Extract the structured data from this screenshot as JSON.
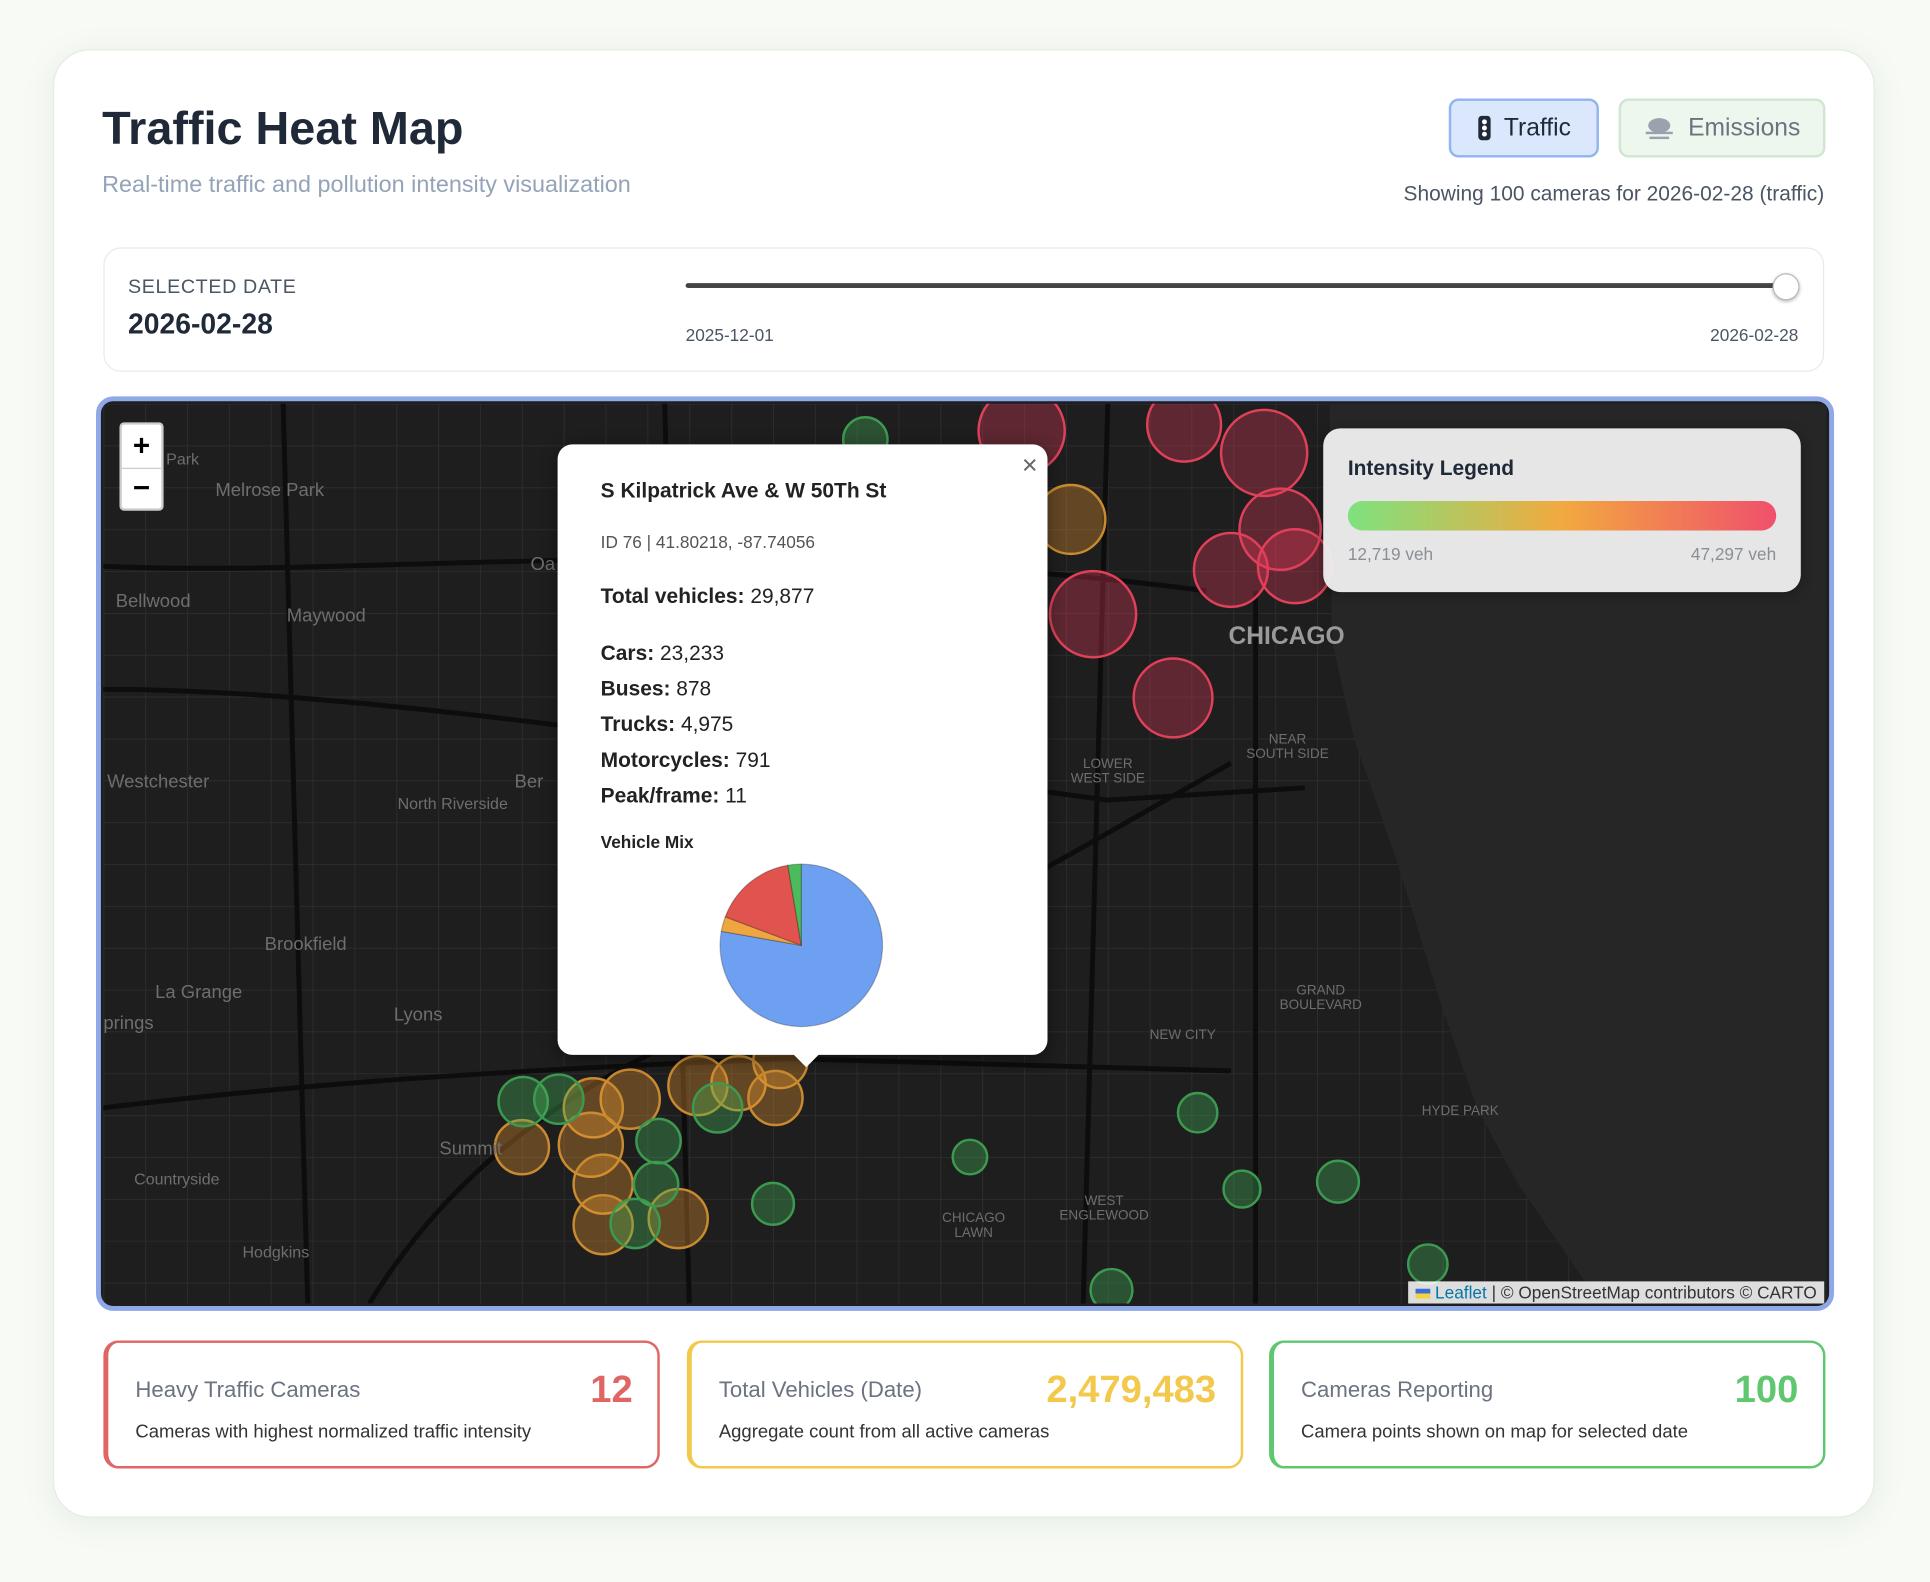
{
  "header": {
    "title": "Traffic Heat Map",
    "subtitle": "Real-time traffic and pollution intensity visualization",
    "buttons": [
      "Traffic",
      "Emissions"
    ],
    "status": "Showing 100 cameras for 2026-02-28 (traffic)"
  },
  "date_panel": {
    "label": "SELECTED DATE",
    "value": "2026-02-28",
    "range_start": "2025-12-01",
    "range_end": "2026-02-28"
  },
  "map": {
    "zoom_in": "+",
    "zoom_out": "−",
    "labels": [
      [
        "Park"
      ],
      [
        "Melrose Park"
      ],
      [
        "Bellwood"
      ],
      [
        "Maywood"
      ],
      [
        "Oa"
      ],
      [
        "Westchester"
      ],
      [
        "Ber"
      ],
      [
        "North Riverside"
      ],
      [
        "Brookfield"
      ],
      [
        "La Grange"
      ],
      [
        "prings"
      ],
      [
        "Lyons"
      ],
      [
        "Summit"
      ],
      [
        "Countryside"
      ],
      [
        "Hodgkins"
      ],
      [
        "CHICAGO"
      ],
      [
        "LOWER",
        "WEST SIDE"
      ],
      [
        "NEAR",
        "SOUTH SIDE"
      ],
      [
        "NEW CITY"
      ],
      [
        "GRAND",
        "BOULEVARD"
      ],
      [
        "HYDE PARK"
      ],
      [
        "WEST",
        "ENGLEWOOD"
      ],
      [
        "CHICAGO",
        "LAWN"
      ]
    ],
    "attribution": {
      "link": "Leaflet",
      "text": "| © OpenStreetMap contributors © CARTO"
    }
  },
  "popup": {
    "close": "×",
    "title": "S Kilpatrick Ave & W 50Th St",
    "meta": "ID 76 | 41.80218, -87.74056",
    "total_label": "Total vehicles:",
    "total_value": "29,877",
    "breakdown": {
      "labels": [
        "Cars:",
        "Buses:",
        "Trucks:",
        "Motorcycles:"
      ],
      "values": [
        23233,
        878,
        4975,
        791
      ],
      "value_labels": [
        "23,233",
        "878",
        "4,975",
        "791"
      ],
      "colors": [
        "#6ea0f2",
        "#f0a640",
        "#e0534f",
        "#4cbb5c"
      ]
    },
    "peak_label": "Peak/frame:",
    "peak_value": 11,
    "chart_title": "Vehicle Mix"
  },
  "legend": {
    "title": "Intensity Legend",
    "min_label": "12,719 veh",
    "max_label": "47,297 veh",
    "colors": [
      "#7ee27e",
      "#f2a93f",
      "#f0506c"
    ]
  },
  "stats": [
    {
      "title": "Heavy Traffic Cameras",
      "value": 12,
      "description": "Cameras with highest normalized traffic intensity",
      "color": "#e06666"
    },
    {
      "title": "Total Vehicles (Date)",
      "value": "2,479,483",
      "description": "Aggregate count from all active cameras",
      "color": "#f2c94c"
    },
    {
      "title": "Cameras Reporting",
      "value": 100,
      "description": "Camera points shown on map for selected date",
      "color": "#5fc76f"
    }
  ]
}
